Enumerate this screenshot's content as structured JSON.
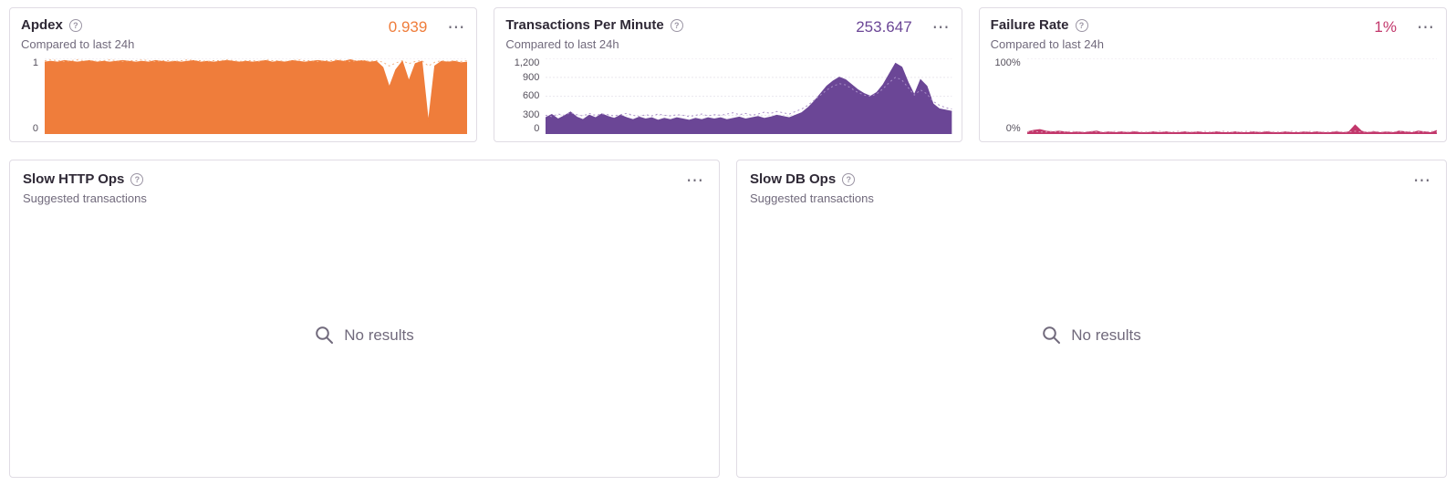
{
  "icons": {
    "help": "?",
    "ellipsis": "⋯"
  },
  "cards": [
    {
      "title": "Apdex",
      "subtitle": "Compared to last 24h",
      "value": "0.939",
      "value_color": "#ef7d3b"
    },
    {
      "title": "Transactions Per Minute",
      "subtitle": "Compared to last 24h",
      "value": "253.647",
      "value_color": "#6b4696"
    },
    {
      "title": "Failure Rate",
      "subtitle": "Compared to last 24h",
      "value": "1%",
      "value_color": "#c2376b"
    },
    {
      "title": "Slow HTTP Ops",
      "subtitle": "Suggested transactions",
      "empty_text": "No results"
    },
    {
      "title": "Slow DB Ops",
      "subtitle": "Suggested transactions",
      "empty_text": "No results"
    }
  ],
  "chart_data": [
    {
      "type": "area",
      "title": "Apdex",
      "summary_value": 0.939,
      "color": "#ef7d3b",
      "previous_color": "#f3b183",
      "previous_style": "dotted",
      "ylim": [
        0,
        1
      ],
      "label_width": 26,
      "grid": true,
      "yticks": [
        {
          "label": "1",
          "value": 1
        },
        {
          "label": "0",
          "value": 0
        }
      ],
      "values": [
        0.95,
        0.96,
        0.95,
        0.97,
        0.96,
        0.95,
        0.96,
        0.97,
        0.95,
        0.96,
        0.95,
        0.96,
        0.97,
        0.96,
        0.95,
        0.96,
        0.95,
        0.97,
        0.96,
        0.95,
        0.96,
        0.95,
        0.96,
        0.97,
        0.95,
        0.96,
        0.95,
        0.96,
        0.97,
        0.96,
        0.95,
        0.96,
        0.95,
        0.96,
        0.97,
        0.95,
        0.96,
        0.95,
        0.97,
        0.96,
        0.95,
        0.96,
        0.97,
        0.96,
        0.95,
        0.97,
        0.96,
        0.98,
        0.96,
        0.97,
        0.95,
        0.96,
        0.88,
        0.62,
        0.85,
        0.96,
        0.7,
        0.93,
        0.96,
        0.15,
        0.9,
        0.96,
        0.95,
        0.96,
        0.94,
        0.95
      ],
      "previous_values": [
        0.97,
        0.98,
        0.97,
        0.96,
        0.97,
        0.98,
        0.97,
        0.97,
        0.96,
        0.97,
        0.98,
        0.97,
        0.96,
        0.97,
        0.97,
        0.98,
        0.97,
        0.96,
        0.97,
        0.97,
        0.96,
        0.97,
        0.98,
        0.97,
        0.97,
        0.96,
        0.97,
        0.97,
        0.98,
        0.97,
        0.96,
        0.97,
        0.97,
        0.96,
        0.98,
        0.97,
        0.97,
        0.96,
        0.97,
        0.98,
        0.97,
        0.97,
        0.96,
        0.97,
        0.97,
        0.98,
        0.97,
        0.96,
        0.97,
        0.97,
        0.96,
        0.97,
        0.95,
        0.9,
        0.94,
        0.97,
        0.93,
        0.96,
        0.97,
        0.9,
        0.95,
        0.97,
        0.96,
        0.97,
        0.96,
        0.97
      ]
    },
    {
      "type": "area",
      "title": "Transactions Per Minute",
      "summary_value": 253.647,
      "color": "#6b4696",
      "previous_color": "#a98fc7",
      "previous_style": "dotted",
      "ylim": [
        0,
        1200
      ],
      "label_width": 44,
      "grid": true,
      "yticks": [
        {
          "label": "1,200",
          "value": 1200
        },
        {
          "label": "900",
          "value": 900
        },
        {
          "label": "600",
          "value": 600
        },
        {
          "label": "300",
          "value": 300
        },
        {
          "label": "0",
          "value": 0
        }
      ],
      "values": [
        260,
        310,
        240,
        290,
        350,
        270,
        230,
        300,
        260,
        320,
        280,
        250,
        300,
        260,
        230,
        270,
        240,
        260,
        220,
        250,
        230,
        260,
        240,
        220,
        250,
        230,
        260,
        240,
        260,
        230,
        250,
        270,
        240,
        260,
        280,
        250,
        270,
        300,
        280,
        260,
        300,
        340,
        420,
        520,
        640,
        760,
        840,
        900,
        860,
        780,
        700,
        640,
        600,
        660,
        780,
        950,
        1120,
        1060,
        820,
        620,
        860,
        760,
        480,
        400,
        380,
        360
      ],
      "previous_values": [
        300,
        280,
        320,
        300,
        340,
        310,
        290,
        330,
        300,
        320,
        310,
        290,
        310,
        330,
        300,
        280,
        310,
        290,
        320,
        300,
        290,
        310,
        300,
        280,
        300,
        320,
        290,
        310,
        300,
        320,
        340,
        310,
        330,
        300,
        320,
        350,
        330,
        360,
        340,
        320,
        360,
        400,
        460,
        540,
        620,
        700,
        760,
        800,
        780,
        720,
        660,
        620,
        600,
        640,
        720,
        820,
        900,
        860,
        740,
        620,
        700,
        640,
        520,
        460,
        420,
        400
      ]
    },
    {
      "type": "area",
      "title": "Failure Rate",
      "summary_value": "1%",
      "color": "#c2376b",
      "previous_color": "#dd9ab4",
      "previous_style": "dotted",
      "ylim": [
        0,
        100
      ],
      "label_width": 40,
      "grid": true,
      "yticks": [
        {
          "label": "100%",
          "value": 100
        },
        {
          "label": "0%",
          "value": 0
        }
      ],
      "values": [
        3,
        5,
        6,
        4,
        3,
        4,
        3,
        2,
        3,
        2,
        3,
        4,
        2,
        3,
        2,
        3,
        2,
        3,
        2,
        2,
        3,
        2,
        3,
        2,
        2,
        3,
        2,
        3,
        2,
        2,
        3,
        2,
        2,
        3,
        2,
        2,
        3,
        2,
        3,
        2,
        2,
        3,
        2,
        2,
        3,
        2,
        3,
        2,
        2,
        3,
        2,
        3,
        12,
        4,
        2,
        3,
        2,
        3,
        2,
        4,
        3,
        2,
        4,
        3,
        2,
        5
      ],
      "previous_values": [
        3,
        4,
        3,
        3,
        4,
        3,
        3,
        4,
        3,
        3,
        4,
        3,
        3,
        3,
        4,
        3,
        3,
        4,
        3,
        3,
        3,
        4,
        3,
        3,
        4,
        3,
        3,
        3,
        4,
        3,
        3,
        4,
        3,
        3,
        3,
        4,
        3,
        3,
        4,
        3,
        3,
        3,
        4,
        3,
        3,
        4,
        3,
        3,
        3,
        4,
        3,
        3,
        4,
        3,
        3,
        4,
        3,
        3,
        3,
        4,
        3,
        4,
        3,
        3,
        4,
        3
      ]
    }
  ]
}
